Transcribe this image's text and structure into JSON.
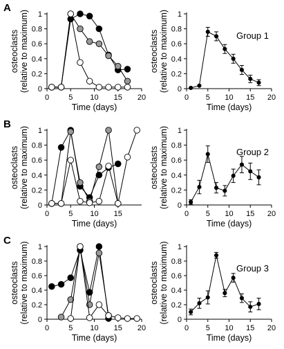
{
  "chart_data": [
    {
      "type": "line",
      "panel_label": "A",
      "title": "",
      "xlabel": "Time (days)",
      "ylabel_line1": "osteoclasts",
      "ylabel_line2": "(relative to maximum)",
      "xlim": [
        0,
        20
      ],
      "ylim": [
        0,
        1
      ],
      "x_ticks": [
        "0",
        "5",
        "10",
        "15",
        "20"
      ],
      "y_ticks": [
        "0",
        "0.2",
        "0.4",
        "0.6",
        "0.8",
        "1"
      ],
      "legend": "none",
      "grid": false,
      "series": [
        {
          "marker": "filled-black",
          "color": "#000000",
          "x": [
            1,
            3,
            5,
            7,
            9,
            11,
            13,
            15,
            17
          ],
          "y": [
            0.02,
            0.02,
            0.93,
            1.0,
            0.97,
            0.8,
            0.45,
            0.25,
            0.26
          ]
        },
        {
          "marker": "filled-gray",
          "color": "#999999",
          "x": [
            1,
            3,
            5,
            7,
            9,
            11,
            13,
            15,
            17
          ],
          "y": [
            0.02,
            0.02,
            1.0,
            0.8,
            0.63,
            0.6,
            0.44,
            0.3,
            0.1
          ]
        },
        {
          "marker": "open-white",
          "color": "#ffffff",
          "x": [
            1,
            3,
            5,
            7,
            9,
            11,
            13,
            15,
            17
          ],
          "y": [
            0.02,
            0.02,
            1.0,
            0.35,
            0.1,
            0.02,
            0.02,
            0.02,
            0.02
          ]
        }
      ]
    },
    {
      "type": "line",
      "panel_label": "",
      "title": "Group 1",
      "xlabel": "Time (days)",
      "ylabel_line1": "osteoclasts",
      "ylabel_line2": "(relative to maximum)",
      "xlim": [
        0,
        20
      ],
      "ylim": [
        0,
        1
      ],
      "x_ticks": [
        "0",
        "5",
        "10",
        "15",
        "20"
      ],
      "y_ticks": [
        "0",
        "0.2",
        "0.4",
        "0.6",
        "0.8",
        "1"
      ],
      "legend": "none",
      "grid": false,
      "series": [
        {
          "marker": "filled-black",
          "color": "#000000",
          "x": [
            1,
            3,
            5,
            7,
            9,
            11,
            13,
            15,
            17
          ],
          "y": [
            0.01,
            0.04,
            0.76,
            0.7,
            0.53,
            0.4,
            0.25,
            0.13,
            0.08
          ],
          "err": [
            0,
            0,
            0.06,
            0.06,
            0.06,
            0.06,
            0.06,
            0.05,
            0.04
          ]
        }
      ]
    },
    {
      "type": "line",
      "panel_label": "B",
      "title": "",
      "xlabel": "Time (days)",
      "ylabel_line1": "osteoclasts",
      "ylabel_line2": "(relative to maximum)",
      "xlim": [
        0,
        20
      ],
      "ylim": [
        0,
        1
      ],
      "x_ticks": [
        "0",
        "5",
        "10",
        "15"
      ],
      "y_ticks": [
        "0",
        "0.2",
        "0.4",
        "0.6",
        "0.8",
        "1"
      ],
      "legend": "none",
      "grid": false,
      "series": [
        {
          "marker": "filled-black",
          "color": "#000000",
          "x": [
            1,
            3,
            5,
            7,
            9,
            11,
            13,
            15
          ],
          "y": [
            0.02,
            0.77,
            1.0,
            0.25,
            0.1,
            0.4,
            0.5,
            0.55
          ]
        },
        {
          "marker": "filled-gray",
          "color": "#999999",
          "x": [
            1,
            3,
            5,
            7,
            9,
            11,
            13,
            15
          ],
          "y": [
            0.02,
            0.02,
            0.98,
            0.3,
            0.05,
            0.51,
            1.0,
            0.02
          ]
        },
        {
          "marker": "open-white",
          "color": "#ffffff",
          "x": [
            1,
            3,
            5,
            7,
            9,
            11,
            13,
            15,
            17,
            19
          ],
          "y": [
            0.02,
            0.02,
            0.6,
            0.05,
            0.03,
            0.05,
            0.52,
            0.02,
            0.64,
            1.0
          ]
        }
      ]
    },
    {
      "type": "line",
      "panel_label": "",
      "title": "Group 2",
      "xlabel": "Time (days)",
      "ylabel_line1": "osteoclasts",
      "ylabel_line2": "(relative to maximum)",
      "xlim": [
        0,
        20
      ],
      "ylim": [
        0,
        1
      ],
      "x_ticks": [
        "0",
        "5",
        "10",
        "15",
        "20"
      ],
      "y_ticks": [
        "0",
        "0.2",
        "0.4",
        "0.6",
        "0.8",
        "1"
      ],
      "legend": "none",
      "grid": false,
      "series": [
        {
          "marker": "filled-black",
          "color": "#000000",
          "x": [
            1,
            3,
            5,
            7,
            9,
            11,
            13,
            15,
            17
          ],
          "y": [
            0.04,
            0.24,
            0.68,
            0.23,
            0.19,
            0.39,
            0.54,
            0.45,
            0.37
          ],
          "err": [
            0.03,
            0.09,
            0.11,
            0.07,
            0.07,
            0.09,
            0.11,
            0.11,
            0.1
          ]
        }
      ]
    },
    {
      "type": "line",
      "panel_label": "C",
      "title": "",
      "xlabel": "Time (days)",
      "ylabel_line1": "osteoclasts",
      "ylabel_line2": "(relative to maximum)",
      "xlim": [
        0,
        20
      ],
      "ylim": [
        0,
        1
      ],
      "x_ticks": [
        "0",
        "5",
        "10",
        "15",
        "20"
      ],
      "y_ticks": [
        "0",
        "0.2",
        "0.4",
        "0.6",
        "0.8",
        "1"
      ],
      "legend": "none",
      "grid": false,
      "series": [
        {
          "marker": "filled-black",
          "color": "#000000",
          "x": [
            1,
            3,
            5,
            7,
            9,
            11,
            13
          ],
          "y": [
            0.45,
            0.48,
            0.57,
            0.95,
            0.37,
            1.0,
            0.01
          ]
        },
        {
          "marker": "filled-gray",
          "color": "#999999",
          "x": [
            3,
            5,
            7,
            9,
            11,
            13
          ],
          "y": [
            0.03,
            0.27,
            1.0,
            0.2,
            0.91,
            0.05
          ]
        },
        {
          "marker": "open-white",
          "color": "#ffffff",
          "x": [
            5,
            7,
            9,
            11,
            13,
            15,
            17,
            19
          ],
          "y": [
            0.01,
            1.0,
            0.02,
            0.2,
            0.05,
            0.02,
            0.01,
            0.01
          ]
        }
      ]
    },
    {
      "type": "line",
      "panel_label": "",
      "title": "Group 3",
      "xlabel": "Time (days)",
      "ylabel_line1": "osteoclasts",
      "ylabel_line2": "(relative to maximum)",
      "xlim": [
        0,
        20
      ],
      "ylim": [
        0,
        1
      ],
      "x_ticks": [
        "0",
        "5",
        "10",
        "15",
        "20"
      ],
      "y_ticks": [
        "0",
        "0.2",
        "0.4",
        "0.6",
        "0.8",
        "1"
      ],
      "legend": "none",
      "grid": false,
      "series": [
        {
          "marker": "filled-black",
          "color": "#000000",
          "x": [
            1,
            3,
            5,
            7,
            9,
            11,
            13,
            15,
            17
          ],
          "y": [
            0.1,
            0.22,
            0.3,
            0.88,
            0.36,
            0.57,
            0.29,
            0.17,
            0.21
          ],
          "err": [
            0.04,
            0.07,
            0.09,
            0.04,
            0.05,
            0.06,
            0.06,
            0.07,
            0.08
          ]
        }
      ]
    }
  ]
}
